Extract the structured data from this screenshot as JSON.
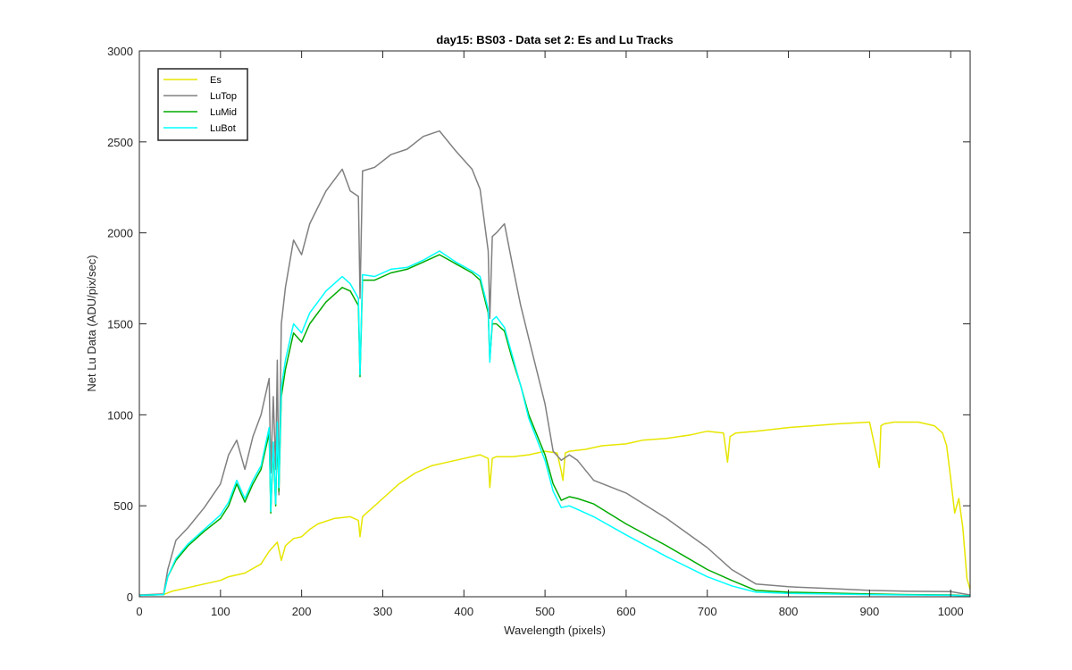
{
  "chart_data": {
    "type": "line",
    "title": "day15: BS03 - Data set 2: Es and Lu Tracks",
    "xlabel": "Wavelength (pixels)",
    "ylabel": "Net Lu Data (ADU/pix/sec)",
    "xlim": [
      0,
      1024
    ],
    "ylim": [
      0,
      3000
    ],
    "xticks": [
      "0",
      "100",
      "200",
      "300",
      "400",
      "500",
      "600",
      "700",
      "800",
      "900",
      "1000"
    ],
    "yticks": [
      "0",
      "500",
      "1000",
      "1500",
      "2000",
      "2500",
      "3000"
    ],
    "grid": false,
    "legend_position": "top-left",
    "series": [
      {
        "name": "Es",
        "color": "#e6e600",
        "x": [
          0,
          30,
          40,
          60,
          80,
          100,
          110,
          130,
          150,
          160,
          170,
          175,
          180,
          190,
          200,
          210,
          220,
          240,
          260,
          270,
          272,
          275,
          280,
          300,
          320,
          340,
          360,
          380,
          400,
          420,
          430,
          432,
          435,
          440,
          460,
          480,
          500,
          515,
          520,
          522,
          525,
          530,
          550,
          570,
          600,
          620,
          650,
          680,
          700,
          720,
          725,
          728,
          735,
          760,
          800,
          830,
          860,
          900,
          912,
          914,
          918,
          930,
          960,
          980,
          990,
          995,
          1000,
          1005,
          1010,
          1015,
          1020,
          1024
        ],
        "y": [
          10,
          12,
          30,
          50,
          70,
          90,
          110,
          130,
          180,
          250,
          300,
          200,
          280,
          320,
          330,
          370,
          400,
          430,
          440,
          420,
          330,
          440,
          460,
          540,
          620,
          680,
          720,
          740,
          760,
          780,
          760,
          600,
          760,
          770,
          770,
          780,
          800,
          790,
          690,
          640,
          790,
          800,
          810,
          830,
          840,
          860,
          870,
          890,
          910,
          900,
          740,
          880,
          900,
          910,
          930,
          940,
          950,
          960,
          710,
          940,
          950,
          960,
          960,
          940,
          900,
          830,
          650,
          460,
          540,
          380,
          100,
          40
        ]
      },
      {
        "name": "LuTop",
        "color": "#808080",
        "x": [
          0,
          30,
          35,
          45,
          60,
          80,
          100,
          110,
          120,
          130,
          140,
          150,
          160,
          162,
          165,
          168,
          170,
          172,
          175,
          180,
          190,
          200,
          210,
          230,
          250,
          260,
          270,
          272,
          275,
          290,
          310,
          330,
          350,
          370,
          390,
          410,
          420,
          430,
          432,
          435,
          440,
          450,
          460,
          470,
          480,
          500,
          510,
          520,
          530,
          540,
          560,
          600,
          650,
          700,
          730,
          760,
          800,
          850,
          900,
          950,
          1000,
          1024
        ],
        "y": [
          10,
          15,
          150,
          310,
          380,
          490,
          620,
          780,
          860,
          700,
          880,
          1000,
          1200,
          680,
          1100,
          700,
          1300,
          560,
          1500,
          1700,
          1960,
          1880,
          2050,
          2230,
          2350,
          2230,
          2200,
          1640,
          2340,
          2360,
          2430,
          2460,
          2530,
          2560,
          2450,
          2350,
          2240,
          1900,
          1530,
          1980,
          2000,
          2050,
          1820,
          1600,
          1420,
          1060,
          800,
          750,
          780,
          750,
          640,
          570,
          430,
          270,
          150,
          70,
          55,
          45,
          35,
          30,
          28,
          10
        ]
      },
      {
        "name": "LuMid",
        "color": "#00aa00",
        "x": [
          0,
          30,
          35,
          45,
          60,
          80,
          100,
          110,
          120,
          130,
          140,
          150,
          160,
          162,
          165,
          168,
          170,
          172,
          175,
          180,
          190,
          200,
          210,
          230,
          250,
          260,
          270,
          272,
          275,
          290,
          310,
          330,
          350,
          370,
          390,
          410,
          420,
          430,
          432,
          435,
          440,
          450,
          460,
          470,
          480,
          500,
          510,
          520,
          530,
          540,
          560,
          600,
          650,
          700,
          730,
          760,
          800,
          850,
          900,
          950,
          1000,
          1024
        ],
        "y": [
          8,
          12,
          110,
          200,
          280,
          360,
          430,
          500,
          620,
          520,
          620,
          700,
          900,
          460,
          820,
          500,
          920,
          580,
          1100,
          1250,
          1450,
          1400,
          1500,
          1620,
          1700,
          1680,
          1600,
          1210,
          1740,
          1740,
          1780,
          1800,
          1840,
          1880,
          1830,
          1780,
          1740,
          1560,
          1300,
          1500,
          1500,
          1460,
          1300,
          1160,
          1000,
          780,
          620,
          530,
          550,
          540,
          510,
          400,
          280,
          150,
          90,
          35,
          25,
          20,
          15,
          12,
          10,
          5
        ]
      },
      {
        "name": "LuBot",
        "color": "#00ffff",
        "x": [
          0,
          30,
          35,
          45,
          60,
          80,
          100,
          110,
          120,
          130,
          140,
          150,
          160,
          162,
          165,
          168,
          170,
          172,
          175,
          180,
          190,
          200,
          210,
          230,
          250,
          260,
          270,
          272,
          275,
          290,
          310,
          330,
          350,
          370,
          390,
          410,
          420,
          430,
          432,
          435,
          440,
          450,
          460,
          470,
          480,
          500,
          510,
          520,
          530,
          540,
          560,
          600,
          650,
          700,
          730,
          760,
          800,
          850,
          900,
          950,
          1000,
          1024
        ],
        "y": [
          8,
          12,
          110,
          210,
          290,
          370,
          450,
          520,
          640,
          540,
          640,
          720,
          930,
          470,
          850,
          510,
          960,
          600,
          1150,
          1300,
          1500,
          1450,
          1560,
          1680,
          1760,
          1720,
          1640,
          1220,
          1770,
          1760,
          1800,
          1810,
          1850,
          1900,
          1840,
          1790,
          1760,
          1580,
          1290,
          1520,
          1540,
          1480,
          1320,
          1160,
          980,
          750,
          580,
          490,
          500,
          480,
          440,
          340,
          220,
          110,
          60,
          25,
          18,
          15,
          12,
          10,
          8,
          4
        ]
      }
    ]
  }
}
